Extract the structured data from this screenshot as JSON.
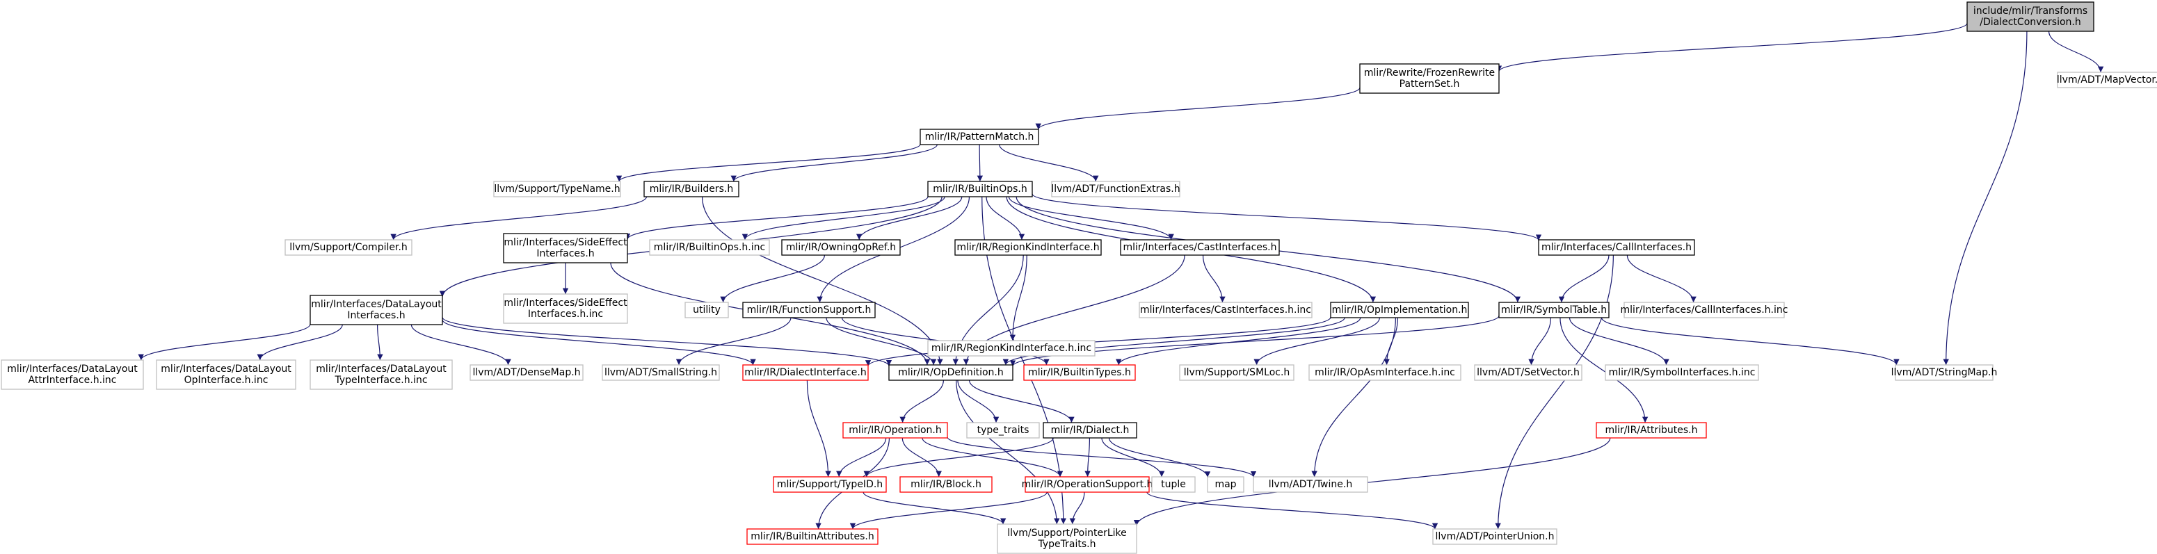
{
  "colors": {
    "edge": "#191970",
    "black_border": "#000000",
    "gray_border": "#bfbfbf",
    "red_border": "#ff0000",
    "gray_text": "#666666",
    "root_fill": "#bfbfbf",
    "text": "#000000"
  },
  "nodes": [
    {
      "id": "n0",
      "kind": "root",
      "lines": [
        "include/mlir/Transforms",
        "/DialectConversion.h"
      ]
    },
    {
      "id": "n1",
      "kind": "black",
      "lines": [
        "mlir/Rewrite/FrozenRewrite",
        "PatternSet.h"
      ]
    },
    {
      "id": "n2",
      "kind": "gray",
      "lines": [
        "llvm/ADT/MapVector.h"
      ]
    },
    {
      "id": "n3",
      "kind": "gray",
      "lines": [
        "llvm/ADT/StringMap.h"
      ]
    },
    {
      "id": "n4",
      "kind": "black",
      "lines": [
        "mlir/IR/PatternMatch.h"
      ]
    },
    {
      "id": "n5",
      "kind": "black",
      "lines": [
        "mlir/IR/BuiltinOps.h"
      ]
    },
    {
      "id": "n6",
      "kind": "black",
      "lines": [
        "mlir/IR/Builders.h"
      ]
    },
    {
      "id": "n7",
      "kind": "gray",
      "lines": [
        "llvm/Support/TypeName.h"
      ]
    },
    {
      "id": "n8",
      "kind": "gray",
      "lines": [
        "llvm/ADT/FunctionExtras.h"
      ]
    },
    {
      "id": "n9",
      "kind": "black",
      "lines": [
        "mlir/Interfaces/DataLayout",
        "Interfaces.h"
      ]
    },
    {
      "id": "n10",
      "kind": "gray",
      "lines": [
        "llvm/Support/Compiler.h"
      ]
    },
    {
      "id": "n11",
      "kind": "black",
      "lines": [
        "mlir/Interfaces/SideEffect",
        "Interfaces.h"
      ]
    },
    {
      "id": "n12",
      "kind": "gray",
      "lines": [
        "mlir/IR/BuiltinOps.h.inc"
      ]
    },
    {
      "id": "n13",
      "kind": "black",
      "lines": [
        "mlir/IR/OwningOpRef.h"
      ]
    },
    {
      "id": "n14",
      "kind": "black",
      "lines": [
        "mlir/IR/FunctionSupport.h"
      ]
    },
    {
      "id": "n15",
      "kind": "black",
      "lines": [
        "mlir/IR/RegionKindInterface.h"
      ]
    },
    {
      "id": "n16",
      "kind": "black",
      "lines": [
        "mlir/Interfaces/CastInterfaces.h"
      ]
    },
    {
      "id": "n17",
      "kind": "black",
      "lines": [
        "mlir/IR/OpImplementation.h"
      ]
    },
    {
      "id": "n18",
      "kind": "black",
      "lines": [
        "mlir/Interfaces/CallInterfaces.h"
      ]
    },
    {
      "id": "n19",
      "kind": "black",
      "lines": [
        "mlir/IR/SymbolTable.h"
      ]
    },
    {
      "id": "n20",
      "kind": "gray",
      "lines": [
        "mlir/Interfaces/SideEffect",
        "Interfaces.h.inc"
      ]
    },
    {
      "id": "n21",
      "kind": "gray",
      "lines": [
        "utility"
      ]
    },
    {
      "id": "n22",
      "kind": "gray",
      "lines": [
        "mlir/IR/RegionKindInterface.h.inc"
      ]
    },
    {
      "id": "n23",
      "kind": "gray",
      "lines": [
        "mlir/Interfaces/CastInterfaces.h.inc"
      ]
    },
    {
      "id": "n24",
      "kind": "gray",
      "lines": [
        "mlir/Interfaces/CallInterfaces.h.inc"
      ]
    },
    {
      "id": "n25",
      "kind": "gray",
      "lines": [
        "mlir/Interfaces/DataLayout",
        "AttrInterface.h.inc"
      ]
    },
    {
      "id": "n26",
      "kind": "gray",
      "lines": [
        "mlir/Interfaces/DataLayout",
        "OpInterface.h.inc"
      ]
    },
    {
      "id": "n27",
      "kind": "gray",
      "lines": [
        "mlir/Interfaces/DataLayout",
        "TypeInterface.h.inc"
      ]
    },
    {
      "id": "n28",
      "kind": "gray",
      "lines": [
        "llvm/ADT/DenseMap.h"
      ]
    },
    {
      "id": "n29",
      "kind": "gray",
      "lines": [
        "llvm/ADT/SmallString.h"
      ]
    },
    {
      "id": "n30",
      "kind": "red",
      "lines": [
        "mlir/IR/DialectInterface.h"
      ]
    },
    {
      "id": "n31",
      "kind": "black",
      "lines": [
        "mlir/IR/OpDefinition.h"
      ]
    },
    {
      "id": "n32",
      "kind": "red",
      "lines": [
        "mlir/IR/BuiltinTypes.h"
      ]
    },
    {
      "id": "n33",
      "kind": "gray",
      "lines": [
        "llvm/Support/SMLoc.h"
      ]
    },
    {
      "id": "n34",
      "kind": "gray",
      "lines": [
        "mlir/IR/OpAsmInterface.h.inc"
      ]
    },
    {
      "id": "n35",
      "kind": "gray",
      "lines": [
        "llvm/ADT/SetVector.h"
      ]
    },
    {
      "id": "n36",
      "kind": "gray",
      "lines": [
        "mlir/IR/SymbolInterfaces.h.inc"
      ]
    },
    {
      "id": "n37",
      "kind": "red",
      "lines": [
        "mlir/IR/Operation.h"
      ]
    },
    {
      "id": "n38",
      "kind": "gray",
      "lines": [
        "type_traits"
      ]
    },
    {
      "id": "n39",
      "kind": "black",
      "lines": [
        "mlir/IR/Dialect.h"
      ]
    },
    {
      "id": "n40",
      "kind": "red",
      "lines": [
        "mlir/IR/Attributes.h"
      ]
    },
    {
      "id": "n41",
      "kind": "red",
      "lines": [
        "mlir/Support/TypeID.h"
      ]
    },
    {
      "id": "n42",
      "kind": "red",
      "lines": [
        "mlir/IR/Block.h"
      ]
    },
    {
      "id": "n43",
      "kind": "red",
      "lines": [
        "mlir/IR/OperationSupport.h"
      ]
    },
    {
      "id": "n44",
      "kind": "gray",
      "lines": [
        "tuple"
      ]
    },
    {
      "id": "n45",
      "kind": "gray",
      "lines": [
        "map"
      ]
    },
    {
      "id": "n46",
      "kind": "gray",
      "lines": [
        "llvm/ADT/Twine.h"
      ]
    },
    {
      "id": "n47",
      "kind": "red",
      "lines": [
        "mlir/IR/BuiltinAttributes.h"
      ]
    },
    {
      "id": "n48",
      "kind": "gray",
      "lines": [
        "llvm/Support/PointerLike",
        "TypeTraits.h"
      ]
    },
    {
      "id": "n49",
      "kind": "gray",
      "lines": [
        "llvm/ADT/PointerUnion.h"
      ]
    }
  ],
  "edges": [
    [
      "n0",
      "n1"
    ],
    [
      "n0",
      "n2"
    ],
    [
      "n0",
      "n3"
    ],
    [
      "n1",
      "n4"
    ],
    [
      "n4",
      "n7"
    ],
    [
      "n4",
      "n6"
    ],
    [
      "n4",
      "n5"
    ],
    [
      "n4",
      "n8"
    ],
    [
      "n6",
      "n10"
    ],
    [
      "n6",
      "n31"
    ],
    [
      "n5",
      "n9"
    ],
    [
      "n5",
      "n11"
    ],
    [
      "n5",
      "n12"
    ],
    [
      "n5",
      "n13"
    ],
    [
      "n5",
      "n14"
    ],
    [
      "n5",
      "n15"
    ],
    [
      "n5",
      "n16"
    ],
    [
      "n5",
      "n17"
    ],
    [
      "n5",
      "n18"
    ],
    [
      "n5",
      "n19"
    ],
    [
      "n5",
      "n48"
    ],
    [
      "n9",
      "n25"
    ],
    [
      "n9",
      "n26"
    ],
    [
      "n9",
      "n27"
    ],
    [
      "n9",
      "n28"
    ],
    [
      "n9",
      "n30"
    ],
    [
      "n9",
      "n31"
    ],
    [
      "n11",
      "n20"
    ],
    [
      "n11",
      "n31"
    ],
    [
      "n13",
      "n21"
    ],
    [
      "n14",
      "n29"
    ],
    [
      "n14",
      "n31"
    ],
    [
      "n14",
      "n32"
    ],
    [
      "n15",
      "n22"
    ],
    [
      "n15",
      "n31"
    ],
    [
      "n16",
      "n23"
    ],
    [
      "n16",
      "n31"
    ],
    [
      "n17",
      "n30"
    ],
    [
      "n17",
      "n31"
    ],
    [
      "n17",
      "n32"
    ],
    [
      "n17",
      "n33"
    ],
    [
      "n17",
      "n34"
    ],
    [
      "n17",
      "n46"
    ],
    [
      "n18",
      "n19"
    ],
    [
      "n18",
      "n24"
    ],
    [
      "n18",
      "n49"
    ],
    [
      "n19",
      "n31"
    ],
    [
      "n19",
      "n35"
    ],
    [
      "n19",
      "n36"
    ],
    [
      "n19",
      "n3"
    ],
    [
      "n19",
      "n40"
    ],
    [
      "n30",
      "n41"
    ],
    [
      "n31",
      "n37"
    ],
    [
      "n31",
      "n38"
    ],
    [
      "n31",
      "n39"
    ],
    [
      "n31",
      "n48"
    ],
    [
      "n37",
      "n41"
    ],
    [
      "n37",
      "n42"
    ],
    [
      "n37",
      "n43"
    ],
    [
      "n37",
      "n47"
    ],
    [
      "n37",
      "n46"
    ],
    [
      "n39",
      "n41"
    ],
    [
      "n39",
      "n43"
    ],
    [
      "n39",
      "n44"
    ],
    [
      "n39",
      "n45"
    ],
    [
      "n40",
      "n48"
    ],
    [
      "n41",
      "n48"
    ],
    [
      "n43",
      "n47"
    ],
    [
      "n43",
      "n48"
    ],
    [
      "n43",
      "n49"
    ]
  ]
}
